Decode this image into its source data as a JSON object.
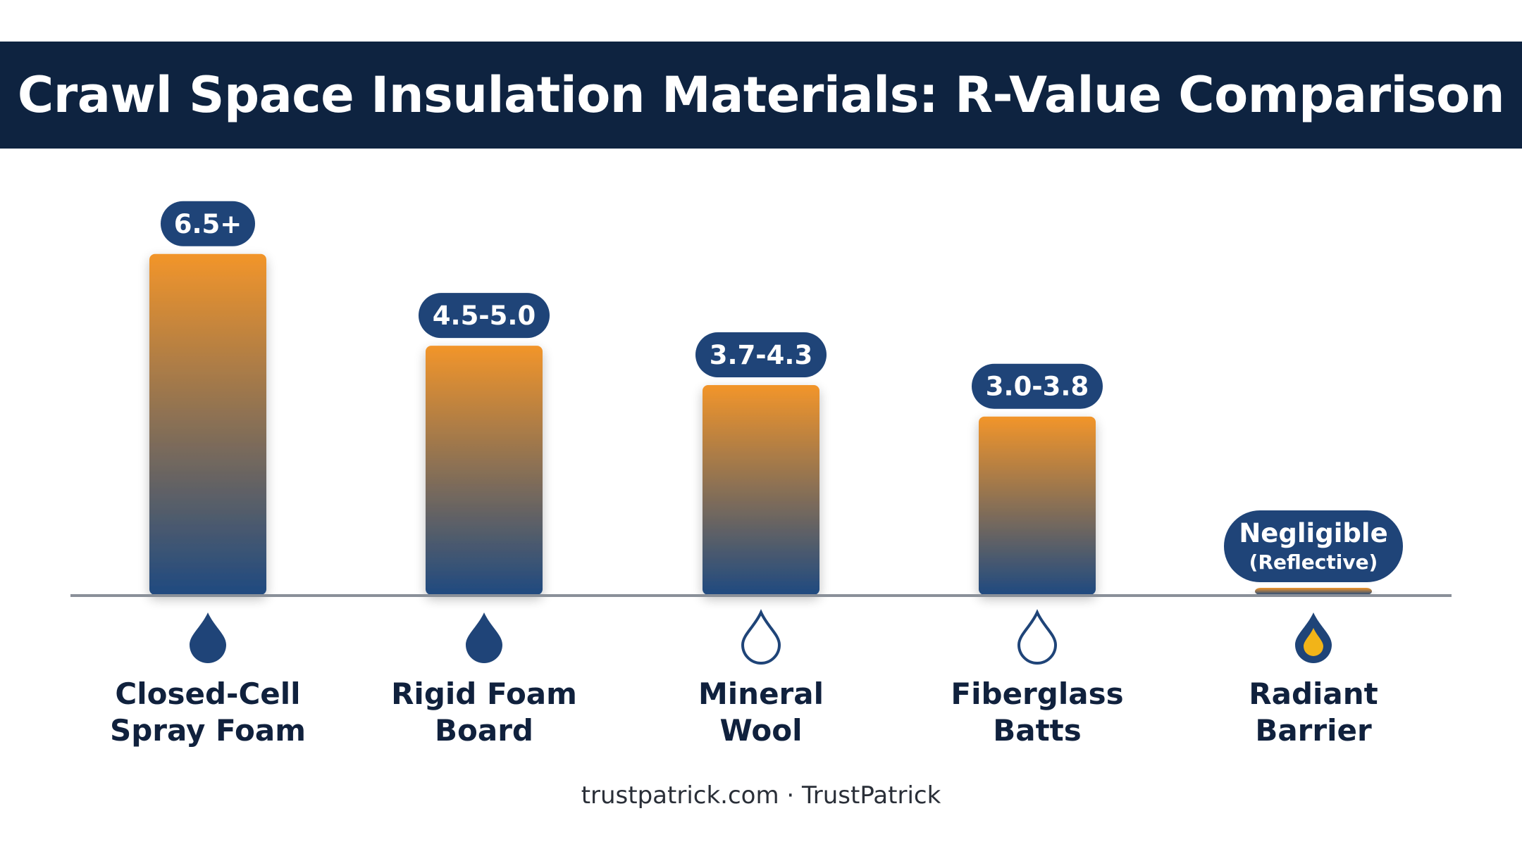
{
  "title": "Crawl Space Insulation Materials: R-Value Comparison",
  "footer": "trustpatrick.com · TrustPatrick",
  "colors": {
    "banner": "#0e2340",
    "bar_top": "#f2952a",
    "bar_bottom": "#1f4a80",
    "label_pill": "#1f4478",
    "category_text": "#10213d",
    "axis": "#8a9099",
    "drop_filled": "#1f4478",
    "drop_accent": "#f2b418"
  },
  "chart_data": {
    "type": "bar",
    "categories": [
      "Closed-Cell Spray Foam",
      "Rigid Foam Board",
      "Mineral Wool",
      "Fiberglass Batts",
      "Radiant Barrier"
    ],
    "category_lines": [
      [
        "Closed-Cell",
        "Spray Foam"
      ],
      [
        "Rigid Foam",
        "Board"
      ],
      [
        "Mineral",
        "Wool"
      ],
      [
        "Fiberglass",
        "Batts"
      ],
      [
        "Radiant",
        "Barrier"
      ]
    ],
    "values": [
      6.5,
      4.75,
      4.0,
      3.4,
      0.1
    ],
    "data_labels": [
      [
        "6.5+"
      ],
      [
        "4.5-5.0"
      ],
      [
        "3.7-4.3"
      ],
      [
        "3.0-3.8"
      ],
      [
        "Negligible",
        "(Reflective)"
      ]
    ],
    "icons": [
      "water-drop-filled-icon",
      "water-drop-filled-icon",
      "water-drop-outline-icon",
      "water-drop-outline-icon",
      "water-drop-amber-icon"
    ],
    "ylim": [
      0,
      7
    ],
    "xlabel": "",
    "ylabel": "",
    "grid": false,
    "legend": "none"
  }
}
